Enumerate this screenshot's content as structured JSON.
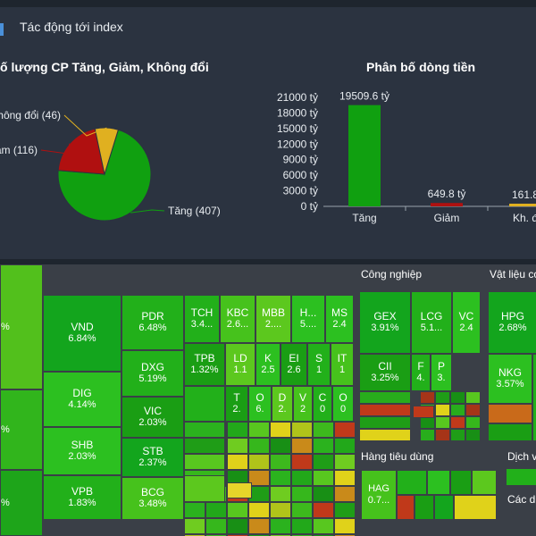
{
  "panel": {
    "title": "Tác động tới index"
  },
  "pie_chart": {
    "title": "Số lượng CP Tăng, Giảm, Không đổi",
    "visible_title": "ố lượng CP Tăng, Giảm, Không đổi"
  },
  "bar_chart": {
    "title": "Phân bố dòng tiền"
  },
  "chart_data": [
    {
      "type": "pie",
      "title": "Số lượng CP Tăng, Giảm, Không đổi",
      "slices": [
        {
          "label": "Tăng (407)",
          "value": 407,
          "color": "#10a010"
        },
        {
          "label": "ảm (116)",
          "value": 116,
          "color": "#b01010"
        },
        {
          "label": "hông đổi (46)",
          "value": 46,
          "color": "#e0b020"
        }
      ]
    },
    {
      "type": "bar",
      "title": "Phân bố dòng tiền",
      "categories": [
        "Tăng",
        "Giảm",
        "Kh. đ"
      ],
      "values": [
        19509.6,
        649.8,
        161.8
      ],
      "data_labels": [
        "19509.6 tỷ",
        "649.8 tỷ",
        "161.8"
      ],
      "colors": [
        "#10a010",
        "#b01010",
        "#e0b020"
      ],
      "yticks": [
        "0 tỷ",
        "3000 tỷ",
        "6000 tỷ",
        "9000 tỷ",
        "12000 tỷ",
        "15000 tỷ",
        "18000 tỷ",
        "21000 tỷ"
      ],
      "ylim": [
        0,
        21000
      ]
    }
  ],
  "treemap": {
    "sectors": [
      {
        "name": "Công nghiệp"
      },
      {
        "name": "Vật liệu co"
      },
      {
        "name": "Hàng tiêu dùng"
      },
      {
        "name": "Dịch v"
      },
      {
        "name": "Các d"
      }
    ],
    "tiles": [
      {
        "sym": "VND",
        "val": "6.84%"
      },
      {
        "sym": "DIG",
        "val": "4.14%"
      },
      {
        "sym": "SHB",
        "val": "2.03%"
      },
      {
        "sym": "VPB",
        "val": "1.83%"
      },
      {
        "sym": "PDR",
        "val": "6.48%"
      },
      {
        "sym": "DXG",
        "val": "5.19%"
      },
      {
        "sym": "VIC",
        "val": "2.03%"
      },
      {
        "sym": "STB",
        "val": "2.37%"
      },
      {
        "sym": "BCG",
        "val": "3.48%"
      },
      {
        "sym": "TCH",
        "val": "3.4..."
      },
      {
        "sym": "KBC",
        "val": "2.6..."
      },
      {
        "sym": "MBB",
        "val": "2...."
      },
      {
        "sym": "H...",
        "val": "5...."
      },
      {
        "sym": "MS",
        "val": "2.4"
      },
      {
        "sym": "TPB",
        "val": "1.32%"
      },
      {
        "sym": "LD",
        "val": "1.1"
      },
      {
        "sym": "K",
        "val": "2.5"
      },
      {
        "sym": "EI",
        "val": "2.6"
      },
      {
        "sym": "S",
        "val": "1"
      },
      {
        "sym": "IT",
        "val": "1"
      },
      {
        "sym": "T",
        "val": "2."
      },
      {
        "sym": "O",
        "val": "6."
      },
      {
        "sym": "D",
        "val": "2."
      },
      {
        "sym": "V",
        "val": "2"
      },
      {
        "sym": "C",
        "val": "0"
      },
      {
        "sym": "O",
        "val": "0"
      },
      {
        "sym": "GEX",
        "val": "3.91%"
      },
      {
        "sym": "LCG",
        "val": "5.1..."
      },
      {
        "sym": "VC",
        "val": "2.4"
      },
      {
        "sym": "CII",
        "val": "3.25%"
      },
      {
        "sym": "F",
        "val": "4."
      },
      {
        "sym": "P",
        "val": "3."
      },
      {
        "sym": "HPG",
        "val": "2.68%"
      },
      {
        "sym": "NKG",
        "val": "3.57%"
      },
      {
        "sym": "HAG",
        "val": "0.7..."
      }
    ],
    "left_edge": [
      {
        "val": "%"
      },
      {
        "val": "%"
      },
      {
        "val": "%"
      }
    ]
  }
}
